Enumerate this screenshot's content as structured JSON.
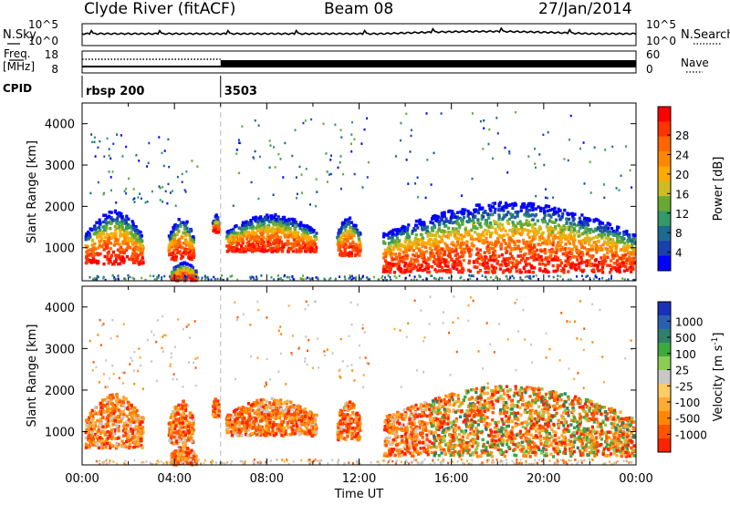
{
  "header": {
    "title": "Clyde River (fitACF)",
    "beam": "Beam 08",
    "date": "27/Jan/2014"
  },
  "nsky_panel": {
    "left_label": "N.Sky",
    "left_ticks": [
      "10^5",
      "10^0"
    ],
    "right_label": "N.Search",
    "right_ticks": [
      "10^5",
      "10^0"
    ]
  },
  "freq_panel": {
    "left_label_top": "Freq.",
    "left_label_bottom": "[MHz]",
    "left_ticks": [
      "18",
      "8"
    ],
    "right_label": "Nave",
    "right_ticks": [
      "60",
      "0"
    ]
  },
  "cpid_panel": {
    "label": "CPID",
    "entries": [
      {
        "text": "rbsp 200",
        "start_hour": 0
      },
      {
        "text": "3503",
        "start_hour": 6
      }
    ]
  },
  "chart_data": [
    {
      "type": "heatmap",
      "name": "Power",
      "ylabel": "Slant Range [km]",
      "yticks": [
        1000,
        2000,
        3000,
        4000
      ],
      "ylim": [
        200,
        4500
      ],
      "xlim": [
        0,
        24
      ],
      "colorbar": {
        "label": "Power [dB]",
        "ticks": [
          "28",
          "24",
          "20",
          "16",
          "12",
          "8",
          "4"
        ],
        "colors": [
          "#ff0000",
          "#ff3300",
          "#ff6600",
          "#ff8800",
          "#ffaa00",
          "#ccbb22",
          "#66aa33",
          "#339966",
          "#1e6a8f",
          "#1a3fb0",
          "#0000ff"
        ]
      }
    },
    {
      "type": "heatmap",
      "name": "Velocity",
      "ylabel": "Slant Range [km]",
      "yticks": [
        1000,
        2000,
        3000,
        4000
      ],
      "ylim": [
        200,
        4500
      ],
      "xlim": [
        0,
        24
      ],
      "xticks": [
        "00:00",
        "04:00",
        "08:00",
        "12:00",
        "16:00",
        "20:00",
        "00:00"
      ],
      "xlabel": "Time UT",
      "colorbar": {
        "label": "Velocity  [m s",
        "label_sup": "-1",
        "ticks": [
          "1000",
          "500",
          "100",
          "25",
          "-25",
          "-100",
          "-500",
          "-1000"
        ],
        "colors": [
          "#1c2fb8",
          "#2b5fb0",
          "#2f7f6a",
          "#3caa3c",
          "#8ccc55",
          "#c8c8c8",
          "#ffcc66",
          "#ffaa33",
          "#ff8800",
          "#ff5500",
          "#ff2200"
        ]
      }
    }
  ]
}
